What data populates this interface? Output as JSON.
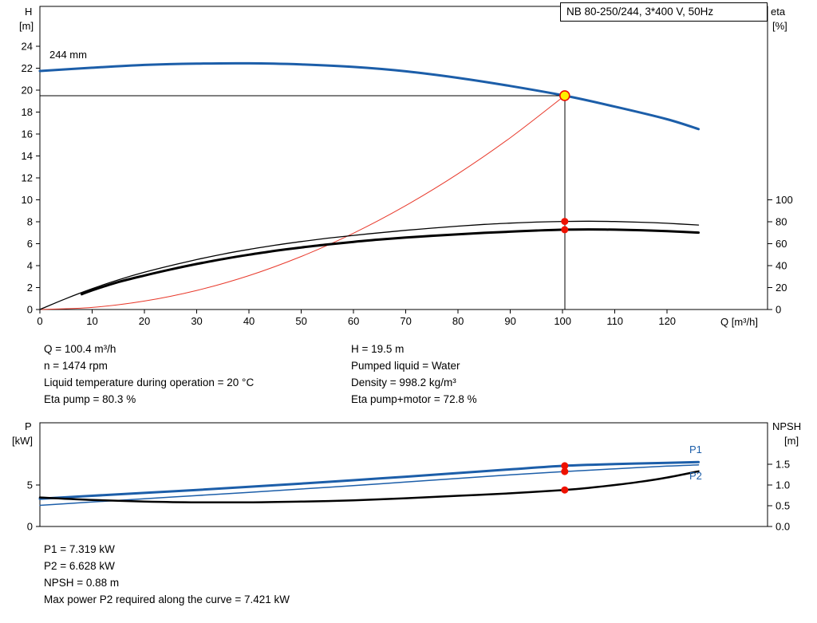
{
  "background": "#ffffff",
  "colors": {
    "curve_blue": "#1c5ea9",
    "system_red": "#e8392b",
    "marker_red": "#ee1100",
    "marker_yellow": "#ffee00",
    "black": "#000000"
  },
  "operating_point_info": {
    "left": [
      "Q = 100.4 m³/h",
      "n = 1474 rpm",
      "Liquid temperature during operation = 20 °C",
      "Eta pump = 80.3 %"
    ],
    "right": [
      "H = 19.5 m",
      "Pumped liquid = Water",
      "Density = 998.2 kg/m³",
      "Eta pump+motor = 72.8 %"
    ]
  },
  "power_info": [
    "P1 = 7.319 kW",
    "P2 = 6.628 kW",
    "NPSH = 0.88 m",
    "Max power P2 required along the curve = 7.421 kW"
  ],
  "chart_data": [
    {
      "type": "line",
      "id": "hq-eta-chart",
      "title": "NB 80-250/244, 3*400 V, 50Hz",
      "impeller_label": "244 mm",
      "x": {
        "label": "Q [m³/h]",
        "min": 0,
        "max": 139.2,
        "ticks": [
          [
            0,
            "0"
          ],
          [
            10,
            "10"
          ],
          [
            20,
            "20"
          ],
          [
            30,
            "30"
          ],
          [
            40,
            "40"
          ],
          [
            50,
            "50"
          ],
          [
            60,
            "60"
          ],
          [
            70,
            "70"
          ],
          [
            80,
            "80"
          ],
          [
            90,
            "90"
          ],
          [
            100,
            "100"
          ],
          [
            110,
            "110"
          ],
          [
            120,
            "120"
          ]
        ]
      },
      "y_left": {
        "label": "H",
        "unit": "[m]",
        "min": 0,
        "max": 27.64,
        "ticks": [
          [
            0,
            "0"
          ],
          [
            2,
            "2"
          ],
          [
            4,
            "4"
          ],
          [
            6,
            "6"
          ],
          [
            8,
            "8"
          ],
          [
            10,
            "10"
          ],
          [
            12,
            "12"
          ],
          [
            14,
            "14"
          ],
          [
            16,
            "16"
          ],
          [
            18,
            "18"
          ],
          [
            20,
            "20"
          ],
          [
            22,
            "22"
          ],
          [
            24,
            "24"
          ]
        ]
      },
      "y_right": {
        "label": "eta",
        "unit": "[%]",
        "min": 0,
        "max": 276.4,
        "ticks": [
          [
            0,
            "0"
          ],
          [
            20,
            "20"
          ],
          [
            40,
            "40"
          ],
          [
            60,
            "60"
          ],
          [
            80,
            "80"
          ],
          [
            100,
            "100"
          ]
        ]
      },
      "series": [
        {
          "name": "head-curve",
          "axis": "left",
          "color": "#1c5ea9",
          "width": 3,
          "points": [
            [
              0,
              21.75
            ],
            [
              10,
              22.05
            ],
            [
              20,
              22.3
            ],
            [
              30,
              22.42
            ],
            [
              40,
              22.45
            ],
            [
              50,
              22.35
            ],
            [
              60,
              22.12
            ],
            [
              70,
              21.72
            ],
            [
              80,
              21.12
            ],
            [
              90,
              20.38
            ],
            [
              100.4,
              19.5
            ],
            [
              110,
              18.5
            ],
            [
              120,
              17.35
            ],
            [
              126,
              16.45
            ]
          ]
        },
        {
          "name": "system-curve",
          "axis": "left",
          "color": "#e8392b",
          "width": 1,
          "points": [
            [
              0,
              0
            ],
            [
              10,
              0.19
            ],
            [
              20,
              0.77
            ],
            [
              30,
              1.74
            ],
            [
              40,
              3.09
            ],
            [
              50,
              4.84
            ],
            [
              60,
              6.96
            ],
            [
              70,
              9.48
            ],
            [
              80,
              12.38
            ],
            [
              90,
              15.67
            ],
            [
              100.4,
              19.5
            ]
          ]
        },
        {
          "name": "eta-pump-curve",
          "axis": "right",
          "color": "#000000",
          "width": 1.3,
          "points": [
            [
              0,
              0
            ],
            [
              5,
              10
            ],
            [
              10,
              19
            ],
            [
              15,
              27
            ],
            [
              20,
              34
            ],
            [
              25,
              40
            ],
            [
              30,
              45.5
            ],
            [
              35,
              50.5
            ],
            [
              40,
              54.8
            ],
            [
              45,
              58.6
            ],
            [
              50,
              62
            ],
            [
              55,
              65
            ],
            [
              60,
              67.6
            ],
            [
              65,
              70
            ],
            [
              70,
              72.2
            ],
            [
              75,
              74.2
            ],
            [
              80,
              76
            ],
            [
              85,
              77.6
            ],
            [
              90,
              78.8
            ],
            [
              95,
              79.7
            ],
            [
              100.4,
              80.3
            ],
            [
              105,
              80.5
            ],
            [
              110,
              80.2
            ],
            [
              115,
              79.6
            ],
            [
              120,
              78.6
            ],
            [
              126,
              77
            ]
          ]
        },
        {
          "name": "eta-pump-motor-curve",
          "axis": "right",
          "color": "#000000",
          "width": 3,
          "points": [
            [
              8,
              14
            ],
            [
              10,
              17.5
            ],
            [
              15,
              25
            ],
            [
              20,
              31
            ],
            [
              25,
              36.5
            ],
            [
              30,
              41.5
            ],
            [
              35,
              46
            ],
            [
              40,
              50
            ],
            [
              45,
              53.5
            ],
            [
              50,
              56.6
            ],
            [
              55,
              59.3
            ],
            [
              60,
              61.7
            ],
            [
              65,
              63.8
            ],
            [
              70,
              65.6
            ],
            [
              75,
              67.2
            ],
            [
              80,
              68.6
            ],
            [
              85,
              69.9
            ],
            [
              90,
              71
            ],
            [
              95,
              72
            ],
            [
              100.4,
              72.8
            ],
            [
              105,
              73
            ],
            [
              110,
              72.8
            ],
            [
              115,
              72.3
            ],
            [
              120,
              71.4
            ],
            [
              126,
              70.1
            ]
          ]
        }
      ],
      "guide_lines": [
        {
          "name": "duty-h-line",
          "from": [
            0,
            19.5
          ],
          "to": [
            100.4,
            19.5
          ]
        },
        {
          "name": "duty-q-line",
          "from": [
            100.4,
            0
          ],
          "to": [
            100.4,
            19.5
          ]
        }
      ],
      "markers": [
        {
          "name": "duty-point",
          "axis": "left",
          "q": 100.4,
          "v": 19.5,
          "r": 6,
          "fill": "#ffee00",
          "stroke": "#ee1100",
          "stroke_width": 1.6
        },
        {
          "name": "eta-pump-point",
          "axis": "right",
          "q": 100.4,
          "v": 80.3,
          "r": 4.5,
          "fill": "#ee1100"
        },
        {
          "name": "eta-pump-motor-point",
          "axis": "right",
          "q": 100.4,
          "v": 72.8,
          "r": 4.5,
          "fill": "#ee1100"
        }
      ]
    },
    {
      "type": "line",
      "id": "power-npsh-chart",
      "curve_labels": [
        "P1",
        "P2"
      ],
      "x": {
        "label": "",
        "min": 0,
        "max": 139.2,
        "ticks": []
      },
      "y_left": {
        "label": "P",
        "unit": "[kW]",
        "min": 0,
        "max": 12.5,
        "ticks": [
          [
            0,
            "0"
          ],
          [
            5,
            "5"
          ]
        ]
      },
      "y_right": {
        "label": "NPSH",
        "unit": "[m]",
        "min": 0,
        "max": 2.5,
        "ticks": [
          [
            0,
            "0.0"
          ],
          [
            0.5,
            "0.5"
          ],
          [
            1,
            "1.0"
          ],
          [
            1.5,
            "1.5"
          ]
        ]
      },
      "series": [
        {
          "name": "p1-curve",
          "axis": "left",
          "color": "#1c5ea9",
          "width": 3,
          "points": [
            [
              0,
              3.35
            ],
            [
              10,
              3.7
            ],
            [
              20,
              4.05
            ],
            [
              30,
              4.4
            ],
            [
              40,
              4.78
            ],
            [
              50,
              5.17
            ],
            [
              60,
              5.58
            ],
            [
              70,
              6.0
            ],
            [
              80,
              6.44
            ],
            [
              90,
              6.88
            ],
            [
              100.4,
              7.319
            ],
            [
              110,
              7.52
            ],
            [
              120,
              7.67
            ],
            [
              126,
              7.76
            ]
          ]
        },
        {
          "name": "p2-curve",
          "axis": "left",
          "color": "#1c5ea9",
          "width": 1.5,
          "points": [
            [
              0,
              2.55
            ],
            [
              10,
              2.95
            ],
            [
              20,
              3.35
            ],
            [
              30,
              3.73
            ],
            [
              40,
              4.12
            ],
            [
              50,
              4.52
            ],
            [
              60,
              4.93
            ],
            [
              70,
              5.36
            ],
            [
              80,
              5.8
            ],
            [
              90,
              6.22
            ],
            [
              100.4,
              6.628
            ],
            [
              110,
              6.95
            ],
            [
              120,
              7.28
            ],
            [
              126,
              7.42
            ]
          ]
        },
        {
          "name": "npsh-curve",
          "axis": "right",
          "color": "#000000",
          "width": 2.5,
          "points": [
            [
              0,
              0.7
            ],
            [
              10,
              0.64
            ],
            [
              20,
              0.6
            ],
            [
              30,
              0.58
            ],
            [
              40,
              0.58
            ],
            [
              50,
              0.6
            ],
            [
              60,
              0.63
            ],
            [
              70,
              0.68
            ],
            [
              80,
              0.74
            ],
            [
              90,
              0.8
            ],
            [
              100.4,
              0.88
            ],
            [
              105,
              0.93
            ],
            [
              110,
              1.0
            ],
            [
              115,
              1.08
            ],
            [
              120,
              1.18
            ],
            [
              126,
              1.33
            ]
          ]
        }
      ],
      "guide_lines": [],
      "markers": [
        {
          "name": "p1-point",
          "axis": "left",
          "q": 100.4,
          "v": 7.319,
          "r": 4.5,
          "fill": "#ee1100"
        },
        {
          "name": "p2-point",
          "axis": "left",
          "q": 100.4,
          "v": 6.628,
          "r": 4.5,
          "fill": "#ee1100"
        },
        {
          "name": "npsh-point",
          "axis": "right",
          "q": 100.4,
          "v": 0.88,
          "r": 4.5,
          "fill": "#ee1100"
        }
      ]
    }
  ]
}
